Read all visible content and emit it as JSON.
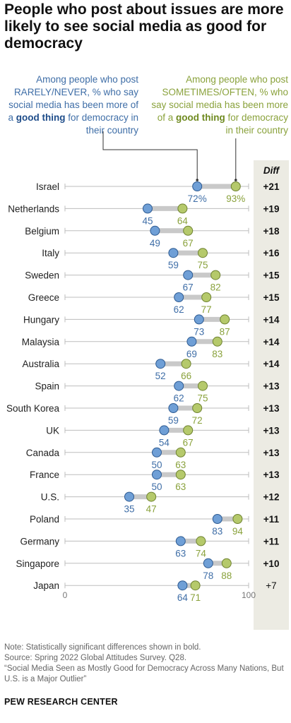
{
  "title": "People who post about issues are more likely to see social media as good for democracy",
  "legend": {
    "rarely": {
      "pre": "Among people who post RARELY/NEVER, % who say social media has been more of a ",
      "bold": "good thing",
      "post": " for democracy in their country"
    },
    "sometimes": {
      "pre": "Among people who post SOMETIMES/OFTEN, % who say social media has been more of a ",
      "bold": "good thing",
      "post": " for democracy in their country"
    }
  },
  "diff_header": "Diff",
  "notes": [
    "Note: Statistically significant differences shown in bold.",
    "Source: Spring 2022 Global Attitudes Survey. Q28.",
    "“Social Media Seen as Mostly Good for Democracy Across Many Nations, But U.S. is a Major Outlier”"
  ],
  "footer": "PEW RESEARCH CENTER",
  "colors": {
    "rarely": "#6f9fd6",
    "sometimes": "#b5c96b",
    "rarely_text": "#3f6ea7",
    "sometimes_text": "#8aa23c"
  },
  "chart_data": {
    "type": "dot",
    "xlim": [
      0,
      100
    ],
    "x_ticks": [
      "0",
      "100"
    ],
    "series": [
      {
        "name": "RARELY/NEVER"
      },
      {
        "name": "SOMETIMES/OFTEN"
      }
    ],
    "rows": [
      {
        "country": "Israel",
        "rarely": 72,
        "sometimes": 93,
        "diff": "+21",
        "significant": true,
        "pct": true
      },
      {
        "country": "Netherlands",
        "rarely": 45,
        "sometimes": 64,
        "diff": "+19",
        "significant": true
      },
      {
        "country": "Belgium",
        "rarely": 49,
        "sometimes": 67,
        "diff": "+18",
        "significant": true
      },
      {
        "country": "Italy",
        "rarely": 59,
        "sometimes": 75,
        "diff": "+16",
        "significant": true
      },
      {
        "country": "Sweden",
        "rarely": 67,
        "sometimes": 82,
        "diff": "+15",
        "significant": true
      },
      {
        "country": "Greece",
        "rarely": 62,
        "sometimes": 77,
        "diff": "+15",
        "significant": true
      },
      {
        "country": "Hungary",
        "rarely": 73,
        "sometimes": 87,
        "diff": "+14",
        "significant": true
      },
      {
        "country": "Malaysia",
        "rarely": 69,
        "sometimes": 83,
        "diff": "+14",
        "significant": true
      },
      {
        "country": "Australia",
        "rarely": 52,
        "sometimes": 66,
        "diff": "+14",
        "significant": true
      },
      {
        "country": "Spain",
        "rarely": 62,
        "sometimes": 75,
        "diff": "+13",
        "significant": true
      },
      {
        "country": "South Korea",
        "rarely": 59,
        "sometimes": 72,
        "diff": "+13",
        "significant": true
      },
      {
        "country": "UK",
        "rarely": 54,
        "sometimes": 67,
        "diff": "+13",
        "significant": true
      },
      {
        "country": "Canada",
        "rarely": 50,
        "sometimes": 63,
        "diff": "+13",
        "significant": true
      },
      {
        "country": "France",
        "rarely": 50,
        "sometimes": 63,
        "diff": "+13",
        "significant": true
      },
      {
        "country": "U.S.",
        "rarely": 35,
        "sometimes": 47,
        "diff": "+12",
        "significant": true
      },
      {
        "country": "Poland",
        "rarely": 83,
        "sometimes": 94,
        "diff": "+11",
        "significant": true
      },
      {
        "country": "Germany",
        "rarely": 63,
        "sometimes": 74,
        "diff": "+11",
        "significant": true
      },
      {
        "country": "Singapore",
        "rarely": 78,
        "sometimes": 88,
        "diff": "+10",
        "significant": true
      },
      {
        "country": "Japan",
        "rarely": 64,
        "sometimes": 71,
        "diff": "+7",
        "significant": false
      }
    ]
  }
}
